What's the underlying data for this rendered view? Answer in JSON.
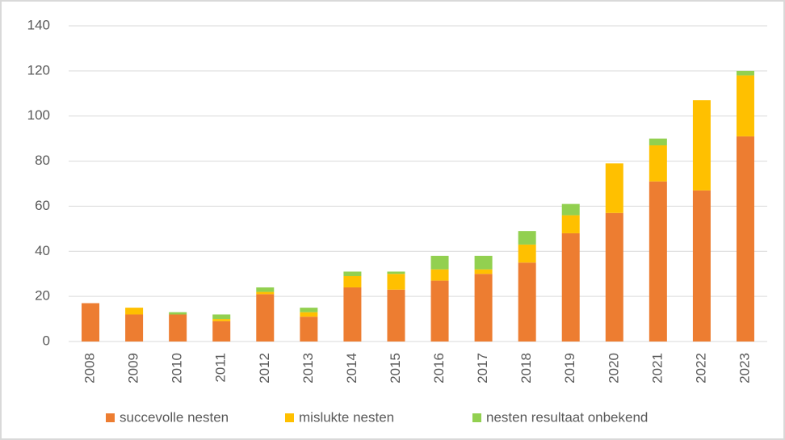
{
  "chart_data": {
    "type": "stacked_bar",
    "categories": [
      "2008",
      "2009",
      "2010",
      "2011",
      "2012",
      "2013",
      "2014",
      "2015",
      "2016",
      "2017",
      "2018",
      "2019",
      "2020",
      "2021",
      "2022",
      "2023"
    ],
    "series": [
      {
        "name": "succevolle nesten",
        "color": "#ed7d31",
        "values": [
          17,
          12,
          12,
          9,
          21,
          11,
          24,
          23,
          27,
          30,
          35,
          48,
          57,
          71,
          67,
          91
        ]
      },
      {
        "name": "mislukte nesten",
        "color": "#ffc000",
        "values": [
          0,
          3,
          0,
          1,
          1,
          2,
          5,
          7,
          5,
          2,
          8,
          8,
          22,
          16,
          40,
          27
        ]
      },
      {
        "name": "nesten resultaat onbekend",
        "color": "#92d050",
        "values": [
          0,
          0,
          1,
          2,
          2,
          2,
          2,
          1,
          6,
          6,
          6,
          5,
          0,
          3,
          0,
          2
        ]
      }
    ],
    "ylim": [
      0,
      140
    ],
    "yticks": [
      0,
      20,
      40,
      60,
      80,
      100,
      120,
      140
    ],
    "grid": true,
    "legend": "bottom"
  }
}
